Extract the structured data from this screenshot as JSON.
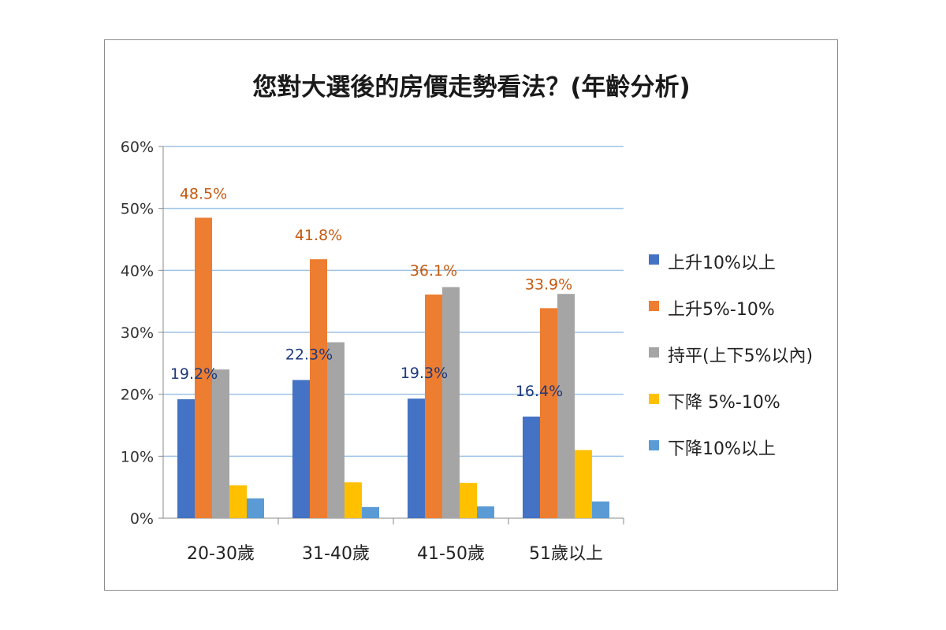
{
  "chart_data": {
    "type": "bar",
    "title": "您對大選後的房價走勢看法？(年齡分析)",
    "categories": [
      "20-30歲",
      "31-40歲",
      "41-50歲",
      "51歲以上"
    ],
    "ylim": [
      0,
      60
    ],
    "yticks": [
      0,
      10,
      20,
      30,
      40,
      50,
      60
    ],
    "ytick_labels": [
      "0%",
      "10%",
      "20%",
      "30%",
      "40%",
      "50%",
      "60%"
    ],
    "grid": true,
    "legend_position": "right",
    "series": [
      {
        "name": "上升10%以上",
        "color": "#4472C4",
        "label_color": "#1F3A7A",
        "values": [
          19.2,
          22.3,
          19.3,
          16.4
        ],
        "labels": [
          "19.2%",
          "22.3%",
          "19.3%",
          "16.4%"
        ]
      },
      {
        "name": "上升5%-10%",
        "color": "#ED7D31",
        "label_color": "#C55A11",
        "values": [
          48.5,
          41.8,
          36.1,
          33.9
        ],
        "labels": [
          "48.5%",
          "41.8%",
          "36.1%",
          "33.9%"
        ]
      },
      {
        "name": "持平(上下5%以內)",
        "color": "#A5A5A5",
        "values": [
          24.0,
          28.4,
          37.3,
          36.2
        ]
      },
      {
        "name": "下降 5%-10%",
        "color": "#FFC000",
        "values": [
          5.3,
          5.8,
          5.7,
          11.0
        ]
      },
      {
        "name": "下降10%以上",
        "color": "#5B9BD5",
        "values": [
          3.2,
          1.8,
          1.9,
          2.7
        ]
      }
    ]
  }
}
